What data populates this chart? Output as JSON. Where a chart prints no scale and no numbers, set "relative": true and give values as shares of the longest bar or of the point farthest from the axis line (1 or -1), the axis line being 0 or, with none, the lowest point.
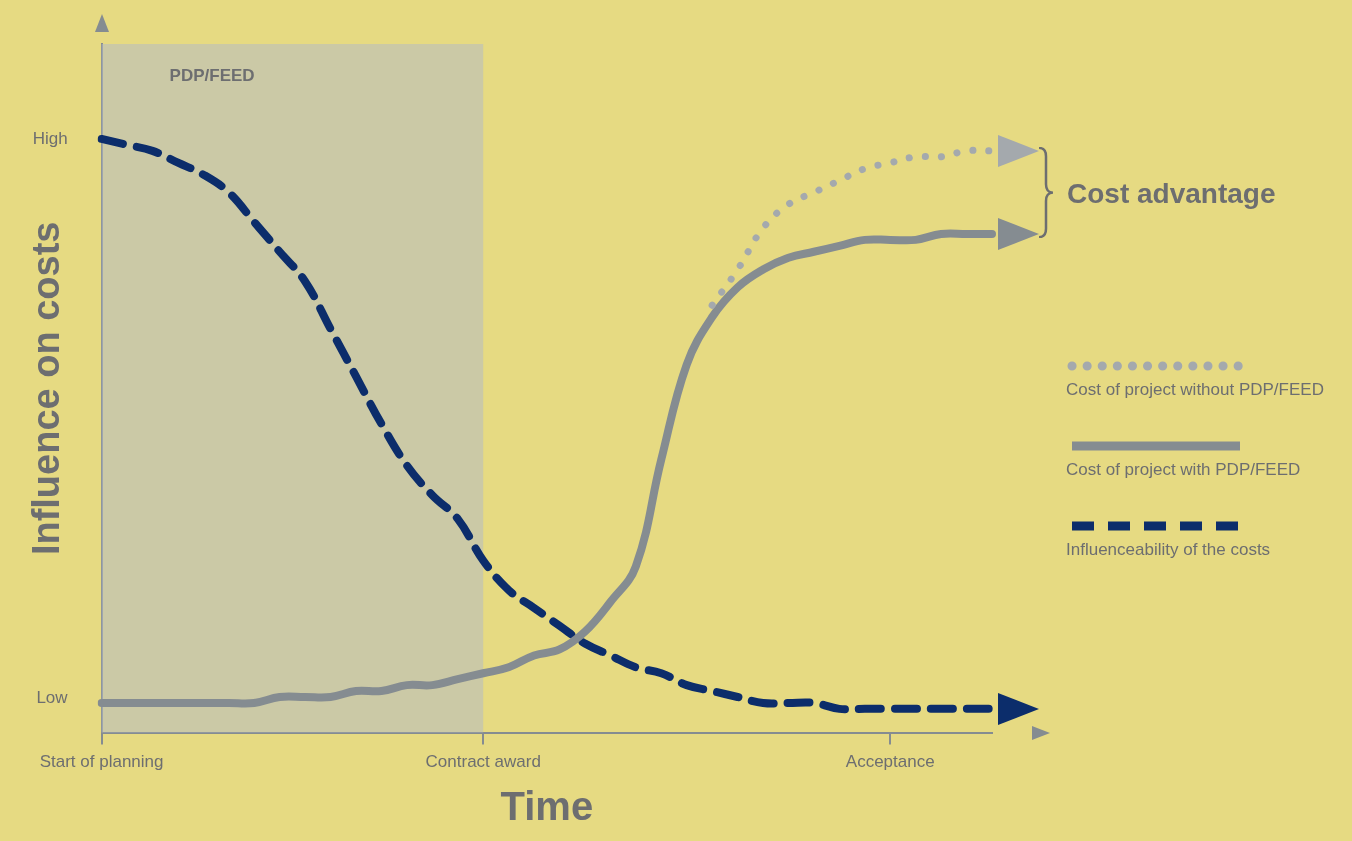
{
  "chart_data": {
    "type": "line",
    "xlabel": "Time",
    "ylabel": "Influence on costs",
    "relative": true,
    "categories": [
      "Start of planning",
      null,
      null,
      null,
      null,
      null,
      null,
      null,
      null,
      null,
      null,
      null,
      null,
      null,
      null,
      "Contract award",
      null,
      null,
      null,
      null,
      null,
      null,
      null,
      null,
      null,
      null,
      null,
      null,
      null,
      null,
      null,
      "Acceptance",
      null,
      null,
      null,
      null
    ],
    "grid": false,
    "legend": "right",
    "marker": "none",
    "bands": [
      {
        "axis": "x",
        "from": "Start of planning",
        "to": "Contract award",
        "label": "PDP/FEED",
        "color": "#b5bcc4"
      }
    ],
    "annotations": [
      "High",
      "Low",
      "Cost advantage"
    ],
    "series": [
      {
        "name": "Cost of project without PDP/FEED",
        "color": "#a4a9ad",
        "line_style": "dotted",
        "values": [
          null,
          null,
          null,
          null,
          null,
          null,
          null,
          null,
          null,
          null,
          null,
          null,
          null,
          null,
          null,
          null,
          null,
          null,
          null,
          null,
          null,
          null,
          null,
          null,
          0.72,
          0.78,
          0.85,
          0.89,
          0.91,
          0.93,
          0.95,
          0.96,
          0.97,
          0.97,
          0.98,
          0.98
        ]
      },
      {
        "name": "Cost of project with PDP/FEED",
        "color": "#858c91",
        "line_style": "solid",
        "values": [
          0.05,
          0.05,
          0.05,
          0.05,
          0.05,
          0.05,
          0.05,
          0.06,
          0.06,
          0.06,
          0.07,
          0.07,
          0.08,
          0.08,
          0.09,
          0.1,
          0.11,
          0.13,
          0.14,
          0.17,
          0.22,
          0.28,
          0.46,
          0.62,
          0.7,
          0.75,
          0.78,
          0.8,
          0.81,
          0.82,
          0.83,
          0.83,
          0.83,
          0.84,
          0.84,
          0.84
        ]
      },
      {
        "name": "Influenceability of the costs",
        "color": "#0c2d6b",
        "line_style": "dashed",
        "values": [
          1.0,
          0.99,
          0.98,
          0.96,
          0.94,
          0.91,
          0.86,
          0.81,
          0.76,
          0.68,
          0.6,
          0.52,
          0.45,
          0.4,
          0.36,
          0.29,
          0.24,
          0.21,
          0.18,
          0.15,
          0.13,
          0.11,
          0.1,
          0.08,
          0.07,
          0.06,
          0.05,
          0.05,
          0.05,
          0.04,
          0.04,
          0.04,
          0.04,
          0.04,
          0.04,
          0.04
        ]
      }
    ]
  }
}
